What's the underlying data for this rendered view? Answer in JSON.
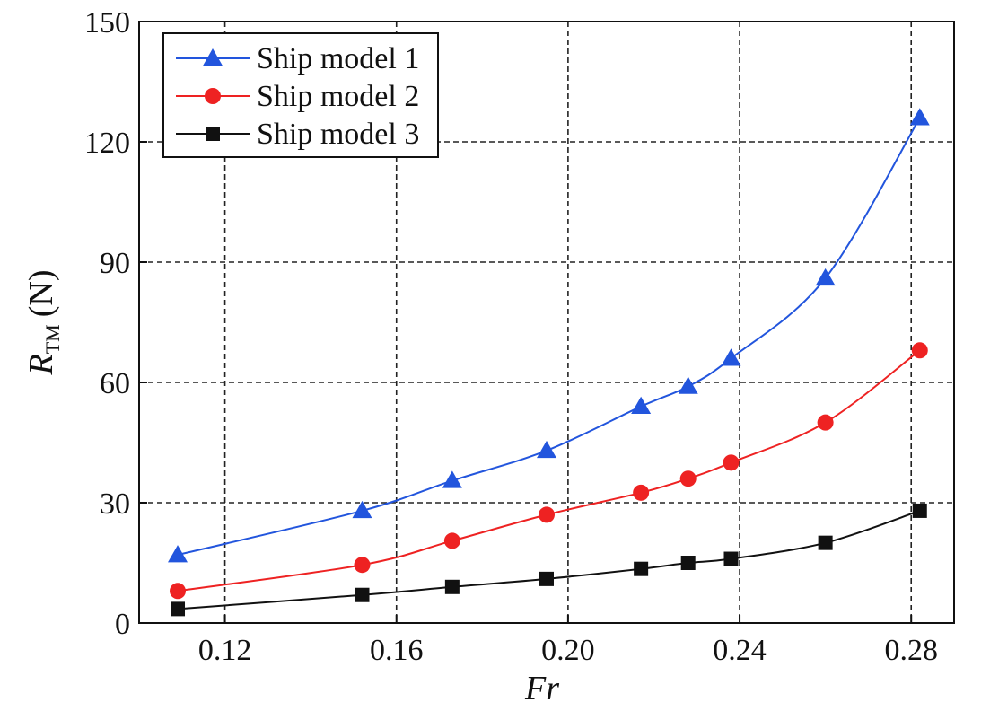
{
  "chart_data": {
    "type": "line",
    "xlabel": "Fr",
    "ylabel_main": "R",
    "ylabel_sub": "TM",
    "ylabel_unit": "(N)",
    "xlim": [
      0.1,
      0.29
    ],
    "ylim": [
      0,
      150
    ],
    "xticks": [
      0.12,
      0.16,
      0.2,
      0.24,
      0.28
    ],
    "xtick_labels": [
      "0.12",
      "0.16",
      "0.20",
      "0.24",
      "0.28"
    ],
    "yticks": [
      0,
      30,
      60,
      90,
      120,
      150
    ],
    "ytick_labels": [
      "0",
      "30",
      "60",
      "90",
      "120",
      "150"
    ],
    "grid": true,
    "legend_position": "top-left",
    "series": [
      {
        "name": "Ship model 1",
        "marker": "triangle",
        "color": "#2255dd",
        "x": [
          0.109,
          0.152,
          0.173,
          0.195,
          0.217,
          0.228,
          0.238,
          0.26,
          0.282
        ],
        "y": [
          17,
          28,
          35.5,
          43,
          54,
          59,
          66,
          86,
          126
        ]
      },
      {
        "name": "Ship model 2",
        "marker": "circle",
        "color": "#ee2222",
        "x": [
          0.109,
          0.152,
          0.173,
          0.195,
          0.217,
          0.228,
          0.238,
          0.26,
          0.282
        ],
        "y": [
          8,
          14.5,
          20.5,
          27,
          32.5,
          36,
          40,
          50,
          68
        ]
      },
      {
        "name": "Ship model 3",
        "marker": "square",
        "color": "#111111",
        "x": [
          0.109,
          0.152,
          0.173,
          0.195,
          0.217,
          0.228,
          0.238,
          0.26,
          0.282
        ],
        "y": [
          3.5,
          7,
          9,
          11,
          13.5,
          15,
          16,
          20,
          28
        ]
      }
    ]
  }
}
